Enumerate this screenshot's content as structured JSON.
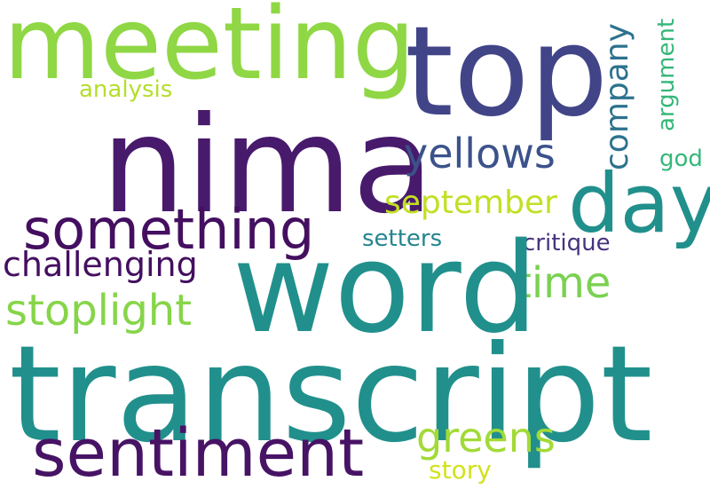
{
  "palette": {
    "lime": "#8fd744",
    "indigo": "#414487",
    "purple": "#440f60",
    "teal": "#21908c",
    "yellowgreen": "#b5de2b",
    "green": "#35b779"
  },
  "words": [
    {
      "name": "word-meeting",
      "text": "meeting",
      "color": "#8fd744"
    },
    {
      "name": "word-top",
      "text": "top",
      "color": "#414487"
    },
    {
      "name": "word-analysis",
      "text": "analysis",
      "color": "#b5de2b"
    },
    {
      "name": "word-company",
      "text": "company",
      "color": "#2c728e"
    },
    {
      "name": "word-argument",
      "text": "argument",
      "color": "#35b779"
    },
    {
      "name": "word-nima",
      "text": "nima",
      "color": "#481a6c"
    },
    {
      "name": "word-yellows",
      "text": "yellows",
      "color": "#3b528b"
    },
    {
      "name": "word-god",
      "text": "god",
      "color": "#35b779"
    },
    {
      "name": "word-day",
      "text": "day",
      "color": "#21908c"
    },
    {
      "name": "word-something",
      "text": "something",
      "color": "#440f60"
    },
    {
      "name": "word-september",
      "text": "september",
      "color": "#c2df23"
    },
    {
      "name": "word-setters",
      "text": "setters",
      "color": "#25858e"
    },
    {
      "name": "word-critique",
      "text": "critique",
      "color": "#46337e"
    },
    {
      "name": "word-challenging",
      "text": "challenging",
      "color": "#440f60"
    },
    {
      "name": "word-time",
      "text": "time",
      "color": "#7ad151"
    },
    {
      "name": "word-stoplight",
      "text": "stoplight",
      "color": "#86d549"
    },
    {
      "name": "word-word",
      "text": "word",
      "color": "#21908c"
    },
    {
      "name": "word-transcript",
      "text": "transcript",
      "color": "#21908c"
    },
    {
      "name": "word-greens",
      "text": "greens",
      "color": "#a2da37"
    },
    {
      "name": "word-sentiment",
      "text": "sentiment",
      "color": "#471365"
    },
    {
      "name": "word-story",
      "text": "story",
      "color": "#d2e21b"
    }
  ]
}
